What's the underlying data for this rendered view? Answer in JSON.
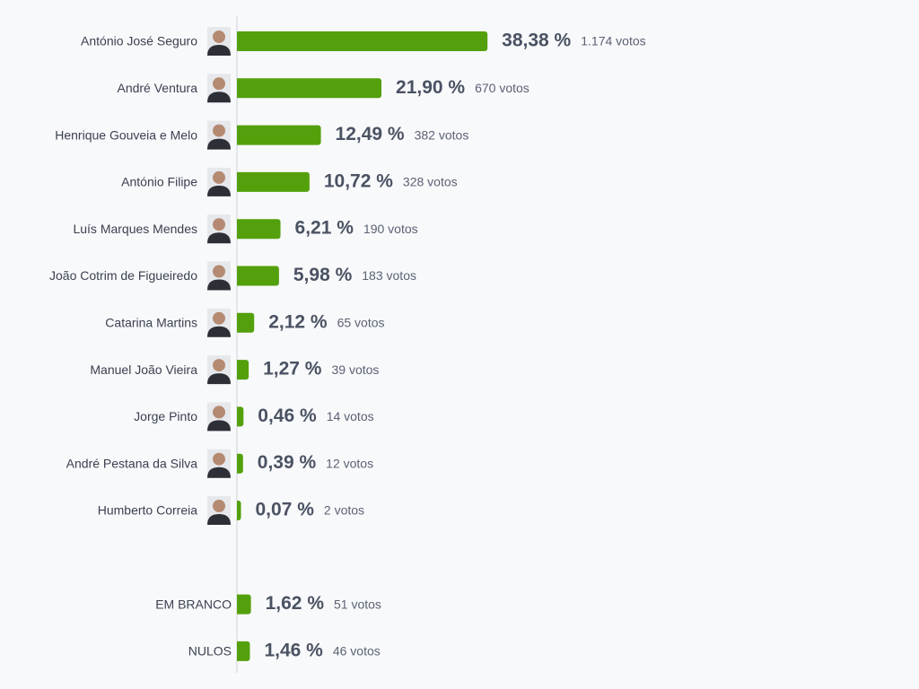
{
  "chart_data": {
    "type": "bar",
    "orientation": "horizontal",
    "color": "#53a00c",
    "categories": [
      "António José Seguro",
      "André Ventura",
      "Henrique Gouveia e Melo",
      "António Filipe",
      "Luís Marques Mendes",
      "João Cotrim de Figueiredo",
      "Catarina Martins",
      "Manuel João Vieira",
      "Jorge Pinto",
      "André Pestana da Silva",
      "Humberto Correia",
      null,
      "EM BRANCO",
      "NULOS"
    ],
    "values": [
      38.38,
      21.9,
      12.49,
      10.72,
      6.21,
      5.98,
      2.12,
      1.27,
      0.46,
      0.39,
      0.07,
      null,
      1.62,
      1.46
    ],
    "value_labels": [
      "38,38 %",
      "21,90 %",
      "12,49 %",
      "10,72 %",
      "6,21 %",
      "5,98 %",
      "2,12 %",
      "1,27 %",
      "0,46 %",
      "0,39 %",
      "0,07 %",
      null,
      "1,62 %",
      "1,46 %"
    ],
    "vote_labels": [
      "1.174 votos",
      "670 votos",
      "382 votos",
      "328 votos",
      "190 votos",
      "183 votos",
      "65 votos",
      "39 votos",
      "14 votos",
      "12 votos",
      "2 votos",
      null,
      "51 votos",
      "46 votos"
    ]
  }
}
